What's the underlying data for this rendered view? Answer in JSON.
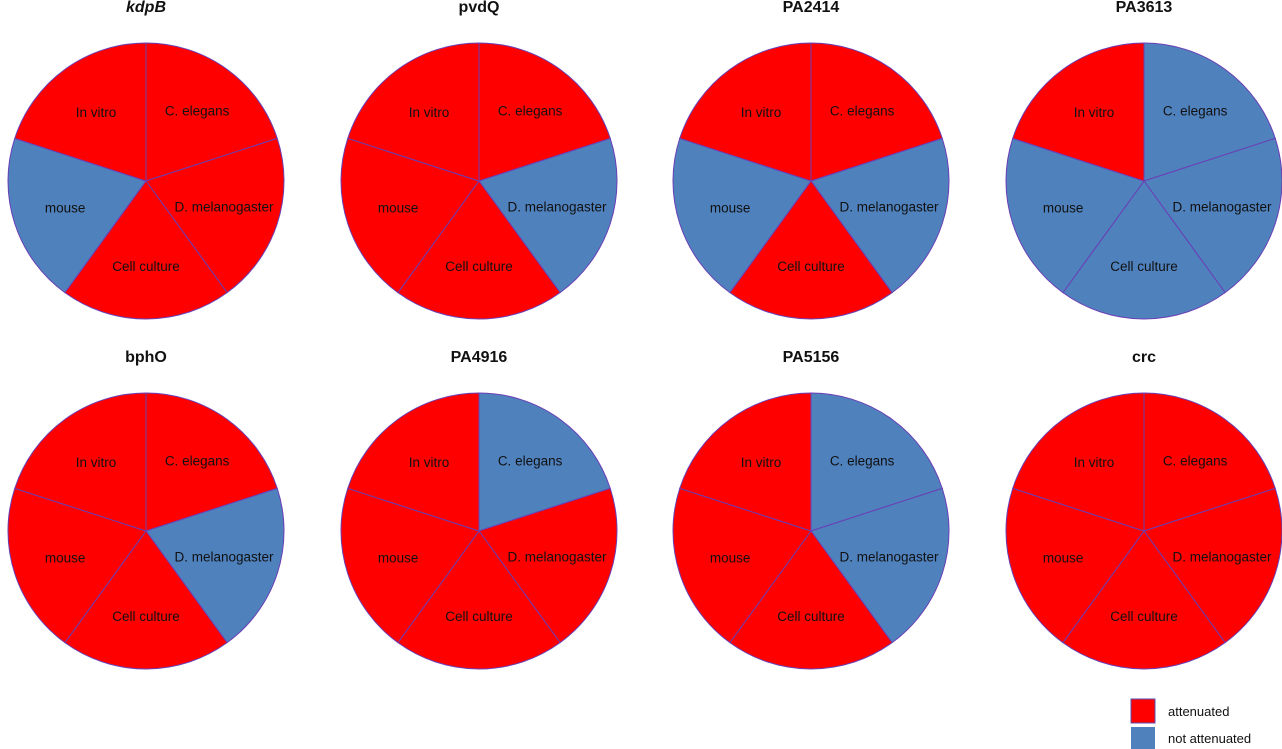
{
  "chart_data": {
    "type": "pie",
    "slice_order": [
      "C. elegans",
      "D. melanogaster",
      "Cell culture",
      "mouse",
      "In vitro"
    ],
    "legend": [
      {
        "key": "attenuated",
        "label": "attenuated",
        "color": "#ff0000"
      },
      {
        "key": "not_attenuated",
        "label": "not attenuated",
        "color": "#4f81bd"
      }
    ],
    "legend_position": "bottom-right",
    "pies": [
      {
        "title": "kdpB",
        "italic": true,
        "values": [
          20,
          20,
          20,
          20,
          20
        ],
        "status": [
          "attenuated",
          "attenuated",
          "attenuated",
          "not_attenuated",
          "attenuated"
        ]
      },
      {
        "title": "pvdQ",
        "italic": false,
        "values": [
          20,
          20,
          20,
          20,
          20
        ],
        "status": [
          "attenuated",
          "not_attenuated",
          "attenuated",
          "attenuated",
          "attenuated"
        ]
      },
      {
        "title": "PA2414",
        "italic": false,
        "values": [
          20,
          20,
          20,
          20,
          20
        ],
        "status": [
          "attenuated",
          "not_attenuated",
          "attenuated",
          "not_attenuated",
          "attenuated"
        ]
      },
      {
        "title": "PA3613",
        "italic": false,
        "values": [
          20,
          20,
          20,
          20,
          20
        ],
        "status": [
          "not_attenuated",
          "not_attenuated",
          "not_attenuated",
          "not_attenuated",
          "attenuated"
        ]
      },
      {
        "title": "bphO",
        "italic": false,
        "values": [
          20,
          20,
          20,
          20,
          20
        ],
        "status": [
          "attenuated",
          "not_attenuated",
          "attenuated",
          "attenuated",
          "attenuated"
        ]
      },
      {
        "title": "PA4916",
        "italic": false,
        "values": [
          20,
          20,
          20,
          20,
          20
        ],
        "status": [
          "not_attenuated",
          "attenuated",
          "attenuated",
          "attenuated",
          "attenuated"
        ]
      },
      {
        "title": "PA5156",
        "italic": false,
        "values": [
          20,
          20,
          20,
          20,
          20
        ],
        "status": [
          "not_attenuated",
          "not_attenuated",
          "attenuated",
          "attenuated",
          "attenuated"
        ]
      },
      {
        "title": "crc",
        "italic": false,
        "values": [
          20,
          20,
          20,
          20,
          20
        ],
        "status": [
          "attenuated",
          "attenuated",
          "attenuated",
          "attenuated",
          "attenuated"
        ]
      }
    ]
  }
}
